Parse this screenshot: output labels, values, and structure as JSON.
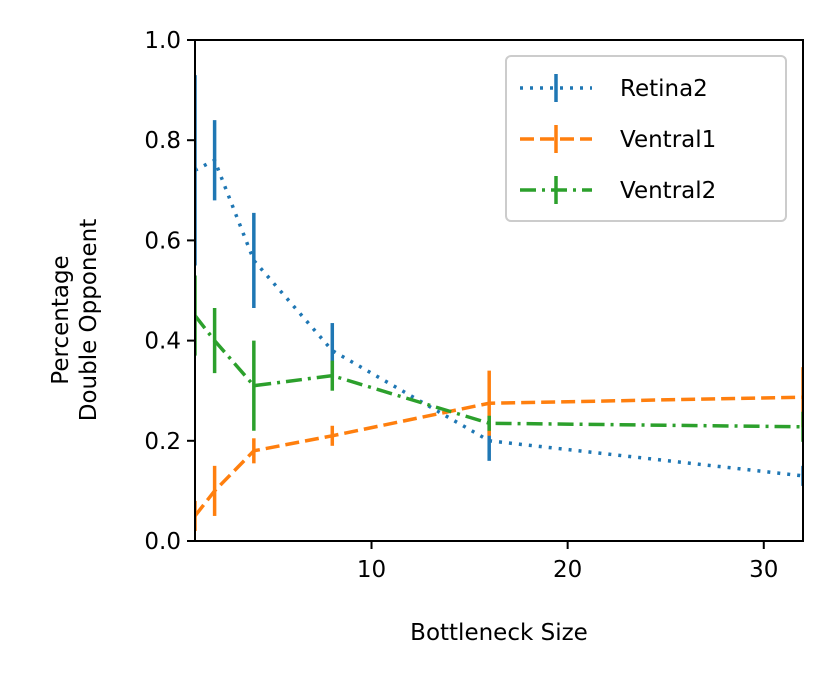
{
  "chart_data": {
    "type": "line",
    "title": "",
    "xlabel": "Bottleneck Size",
    "ylabel_lines": [
      "Percentage",
      "Double Opponent"
    ],
    "xlim": [
      1,
      32
    ],
    "ylim": [
      0.0,
      1.0
    ],
    "xticks": [
      10,
      20,
      30
    ],
    "xtick_labels": [
      "10",
      "20",
      "30"
    ],
    "yticks": [
      0.0,
      0.2,
      0.4,
      0.6,
      0.8,
      1.0
    ],
    "ytick_labels": [
      "0.0",
      "0.2",
      "0.4",
      "0.6",
      "0.8",
      "1.0"
    ],
    "grid": false,
    "legend_position": "top-right",
    "x": [
      1,
      2,
      4,
      8,
      16,
      32
    ],
    "series": [
      {
        "name": "Retina2",
        "color": "#1f77b4",
        "dash": "dotted",
        "values": [
          0.74,
          0.76,
          0.56,
          0.38,
          0.2,
          0.13
        ],
        "errors": [
          0.19,
          0.08,
          0.095,
          0.055,
          0.04,
          0.02
        ]
      },
      {
        "name": "Ventral1",
        "color": "#ff7f0e",
        "dash": "dashed",
        "values": [
          0.05,
          0.1,
          0.18,
          0.21,
          0.275,
          0.287
        ],
        "errors": [
          0.03,
          0.05,
          0.025,
          0.02,
          0.065,
          0.06
        ]
      },
      {
        "name": "Ventral2",
        "color": "#2ca02c",
        "dash": "dashdot",
        "values": [
          0.45,
          0.4,
          0.31,
          0.33,
          0.235,
          0.228
        ],
        "errors": [
          0.08,
          0.065,
          0.09,
          0.03,
          0.015,
          0.03
        ]
      }
    ]
  }
}
